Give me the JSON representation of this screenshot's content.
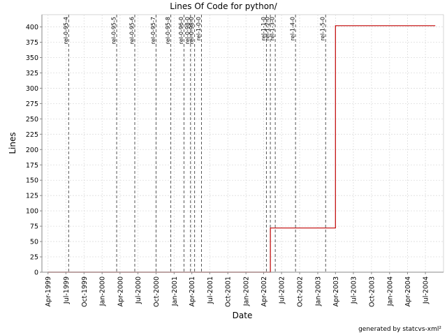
{
  "chart_data": {
    "type": "line",
    "title": "Lines Of Code for python/",
    "xlabel": "Date",
    "ylabel": "Lines",
    "x_type": "date",
    "xlim": [
      "1999-03-01",
      "2004-10-01"
    ],
    "ylim": [
      0,
      420
    ],
    "y_ticks": [
      0,
      25,
      50,
      75,
      100,
      125,
      150,
      175,
      200,
      225,
      250,
      275,
      300,
      325,
      350,
      375,
      400
    ],
    "x_ticks": [
      {
        "date": "1999-04-01",
        "label": "Apr-1999"
      },
      {
        "date": "1999-07-01",
        "label": "Jul-1999"
      },
      {
        "date": "1999-10-01",
        "label": "Oct-1999"
      },
      {
        "date": "2000-01-01",
        "label": "Jan-2000"
      },
      {
        "date": "2000-04-01",
        "label": "Apr-2000"
      },
      {
        "date": "2000-07-01",
        "label": "Jul-2000"
      },
      {
        "date": "2000-10-01",
        "label": "Oct-2000"
      },
      {
        "date": "2001-01-01",
        "label": "Jan-2001"
      },
      {
        "date": "2001-04-01",
        "label": "Apr-2001"
      },
      {
        "date": "2001-07-01",
        "label": "Jul-2001"
      },
      {
        "date": "2001-10-01",
        "label": "Oct-2001"
      },
      {
        "date": "2002-01-01",
        "label": "Jan-2002"
      },
      {
        "date": "2002-04-01",
        "label": "Apr-2002"
      },
      {
        "date": "2002-07-01",
        "label": "Jul-2002"
      },
      {
        "date": "2002-10-01",
        "label": "Oct-2002"
      },
      {
        "date": "2003-01-01",
        "label": "Jan-2003"
      },
      {
        "date": "2003-04-01",
        "label": "Apr-2003"
      },
      {
        "date": "2003-07-01",
        "label": "Jul-2003"
      },
      {
        "date": "2003-10-01",
        "label": "Oct-2003"
      },
      {
        "date": "2004-01-01",
        "label": "Jan-2004"
      },
      {
        "date": "2004-04-01",
        "label": "Apr-2004"
      },
      {
        "date": "2004-07-01",
        "label": "Jul-2004"
      }
    ],
    "series": [
      {
        "color": "#c00000",
        "step": true,
        "points": [
          {
            "x": "1999-04-01",
            "y": 0
          },
          {
            "x": "2002-05-05",
            "y": 0
          },
          {
            "x": "2002-05-05",
            "y": 72
          },
          {
            "x": "2003-04-01",
            "y": 72
          },
          {
            "x": "2003-04-01",
            "y": 402
          },
          {
            "x": "2004-08-20",
            "y": 402
          }
        ]
      }
    ],
    "markers": [
      {
        "label": "rel-0-95-4",
        "date": "1999-07-15"
      },
      {
        "label": "rel-0-95-5",
        "date": "2000-03-15"
      },
      {
        "label": "rel-0-95-6",
        "date": "2000-06-15"
      },
      {
        "label": "rel-0-95-7",
        "date": "2000-10-01"
      },
      {
        "label": "rel-0-95-8",
        "date": "2000-12-15"
      },
      {
        "label": "rel-0-96-0",
        "date": "2001-02-20"
      },
      {
        "label": "rel-0-98-0",
        "date": "2001-03-25"
      },
      {
        "label": "rel-0-98-0",
        "date": "2001-04-15"
      },
      {
        "label": "rel-1-0-0",
        "date": "2001-05-20"
      },
      {
        "label": "rel-1-1-0",
        "date": "2002-04-15"
      },
      {
        "label": "rel-1-2-0",
        "date": "2002-05-05"
      },
      {
        "label": "rel-1-3-0",
        "date": "2002-05-30"
      },
      {
        "label": "rel-1-4-0",
        "date": "2002-09-10"
      },
      {
        "label": "rel-1-5-0",
        "date": "2003-02-10"
      }
    ],
    "grid": true,
    "legend": "none",
    "colors": {
      "line": "#c00000",
      "marker": "#555555",
      "grid": "#dddddd"
    }
  },
  "footer": "generated by statcvs-xml²"
}
